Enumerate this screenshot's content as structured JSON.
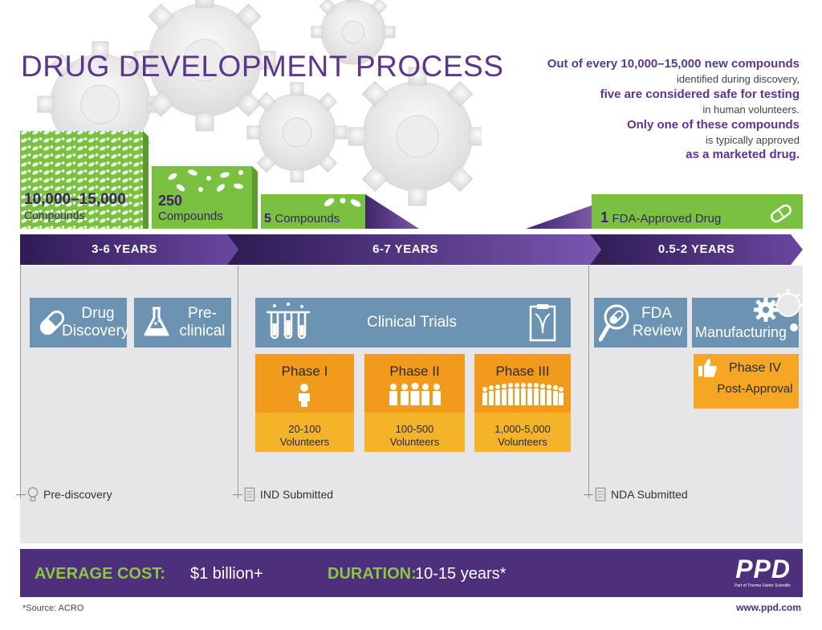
{
  "title": "DRUG DEVELOPMENT PROCESS",
  "intro": {
    "line1": "Out of every 10,000–15,000 new compounds",
    "line2": "identified during discovery,",
    "line3": "five are considered safe for testing",
    "line4": "in human volunteers.",
    "line5": "Only one of these compounds",
    "line6": "is typically approved",
    "line7": "as a marketed drug."
  },
  "compounds": {
    "c1_num": "10,000–15,000",
    "c1_label": "Compounds",
    "c2_num": "250",
    "c2_label": "Compounds",
    "c3_num": "5",
    "c3_label": "Compounds",
    "c4_num": "1",
    "c4_label": "FDA-Approved Drug"
  },
  "timeline": {
    "stage1": "3-6 YEARS",
    "stage2": "6-7 YEARS",
    "stage3": "0.5-2 YEARS"
  },
  "boxes": {
    "drug_discovery": [
      "Drug",
      "Discovery"
    ],
    "preclinical": [
      "Pre-",
      "clinical"
    ],
    "clinical_trials": "Clinical Trials",
    "fda_review": [
      "FDA",
      "Review"
    ],
    "manufacturing": "Manufacturing",
    "phase4": [
      "Phase IV",
      "Post-Approval"
    ]
  },
  "phases": [
    {
      "name": "Phase I",
      "vol1": "20-100",
      "vol2": "Volunteers"
    },
    {
      "name": "Phase II",
      "vol1": "100-500",
      "vol2": "Volunteers"
    },
    {
      "name": "Phase III",
      "vol1": "1,000-5,000",
      "vol2": "Volunteers"
    }
  ],
  "milestones": {
    "m1": "Pre-discovery",
    "m2": "IND Submitted",
    "m3": "NDA Submitted"
  },
  "footer": {
    "cost_label": "AVERAGE COST:",
    "cost_value": "$1 billion+",
    "duration_label": "DURATION:",
    "duration_value": "10-15 years*",
    "logo": "PPD",
    "logo_sub": "Part of Thermo Fisher Scientific",
    "source": "*Source: ACRO",
    "website": "www.ppd.com"
  },
  "colors": {
    "purple": "#4d2f7c",
    "green": "#7ac142",
    "blue_box": "#6c94b2",
    "orange": "#f19a1b",
    "yellow": "#f4b328"
  }
}
